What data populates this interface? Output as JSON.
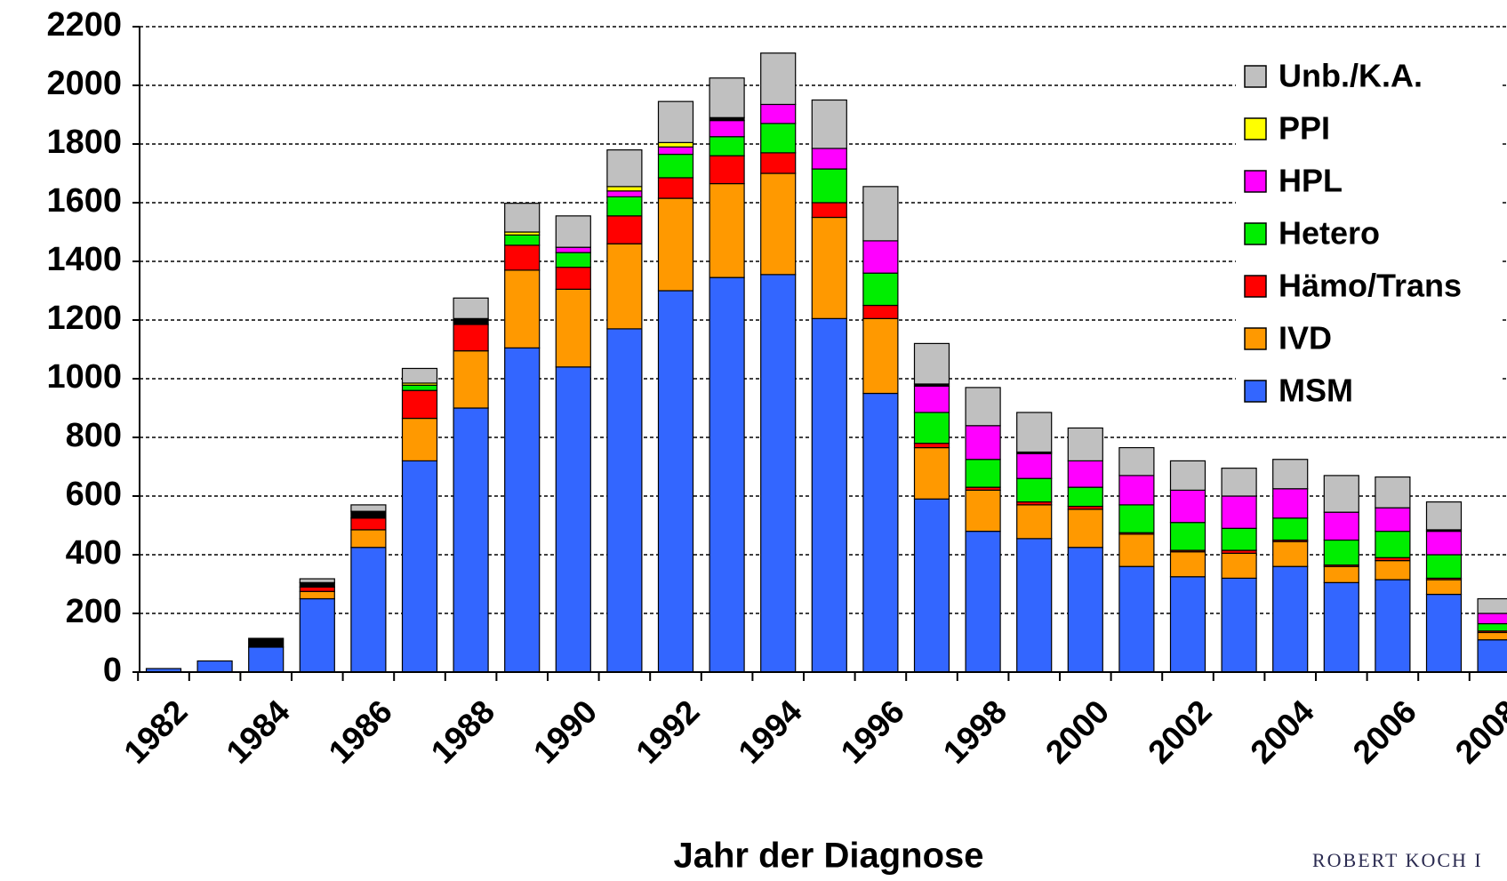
{
  "chart_data": {
    "type": "stacked_bar",
    "x_label": "Jahr der Diagnose",
    "watermark": "ROBERT KOCH I",
    "categories": [
      "1982",
      null,
      "1984",
      null,
      "1986",
      null,
      "1988",
      null,
      "1990",
      null,
      "1992",
      null,
      "1994",
      null,
      "1996",
      null,
      "1998",
      null,
      "2000",
      null,
      "2002",
      null,
      "2004",
      null,
      "2006",
      null,
      "2008"
    ],
    "ylim": [
      0,
      2200
    ],
    "yticks": [
      0,
      200,
      400,
      600,
      800,
      1000,
      1200,
      1400,
      1600,
      1800,
      2000,
      2200
    ],
    "grid": true,
    "legend": "upper right",
    "series": [
      {
        "name": "MSM",
        "color": "#3366ff",
        "values": [
          12,
          38,
          85,
          250,
          425,
          720,
          900,
          1105,
          1040,
          1170,
          1300,
          1345,
          1355,
          1205,
          950,
          590,
          480,
          455,
          425,
          360,
          325,
          320,
          360,
          305,
          315,
          265,
          110
        ]
      },
      {
        "name": "IVD",
        "color": "#ff9900",
        "values": [
          0,
          0,
          0,
          25,
          60,
          145,
          195,
          265,
          265,
          290,
          315,
          320,
          345,
          345,
          255,
          175,
          140,
          115,
          130,
          110,
          85,
          85,
          85,
          55,
          65,
          50,
          25
        ]
      },
      {
        "name": "Hämo/Trans",
        "color": "#ff0000",
        "values": [
          0,
          0,
          0,
          15,
          40,
          95,
          90,
          85,
          75,
          95,
          70,
          95,
          70,
          50,
          45,
          15,
          10,
          10,
          10,
          5,
          5,
          10,
          5,
          5,
          10,
          5,
          5
        ]
      },
      {
        "name": "Hetero",
        "color": "#00ee00",
        "values": [
          0,
          0,
          0,
          0,
          0,
          18,
          0,
          35,
          50,
          65,
          80,
          65,
          100,
          115,
          110,
          105,
          95,
          80,
          65,
          95,
          95,
          75,
          75,
          85,
          90,
          80,
          25
        ]
      },
      {
        "name": "HPL",
        "color": "#ff00ff",
        "values": [
          0,
          0,
          0,
          0,
          0,
          0,
          0,
          0,
          18,
          20,
          25,
          55,
          65,
          70,
          110,
          90,
          115,
          85,
          90,
          100,
          110,
          110,
          100,
          95,
          80,
          80,
          35
        ]
      },
      {
        "name": "PPI",
        "color": "#ffff00",
        "values": [
          0,
          0,
          0,
          0,
          0,
          7,
          0,
          10,
          0,
          15,
          15,
          0,
          0,
          0,
          0,
          0,
          0,
          0,
          0,
          0,
          0,
          0,
          0,
          0,
          0,
          0,
          0
        ]
      },
      {
        "color": "#000000",
        "values": [
          0,
          0,
          30,
          15,
          23,
          0,
          20,
          0,
          0,
          0,
          0,
          10,
          0,
          0,
          0,
          7,
          0,
          5,
          0,
          0,
          0,
          0,
          0,
          0,
          0,
          5,
          0
        ]
      },
      {
        "name": "Unb./K.A.",
        "color": "#c0c0c0",
        "values": [
          0,
          0,
          0,
          13,
          22,
          50,
          70,
          98,
          107,
          125,
          140,
          135,
          175,
          165,
          185,
          138,
          130,
          135,
          112,
          95,
          100,
          95,
          100,
          125,
          105,
          95,
          50
        ]
      }
    ]
  }
}
